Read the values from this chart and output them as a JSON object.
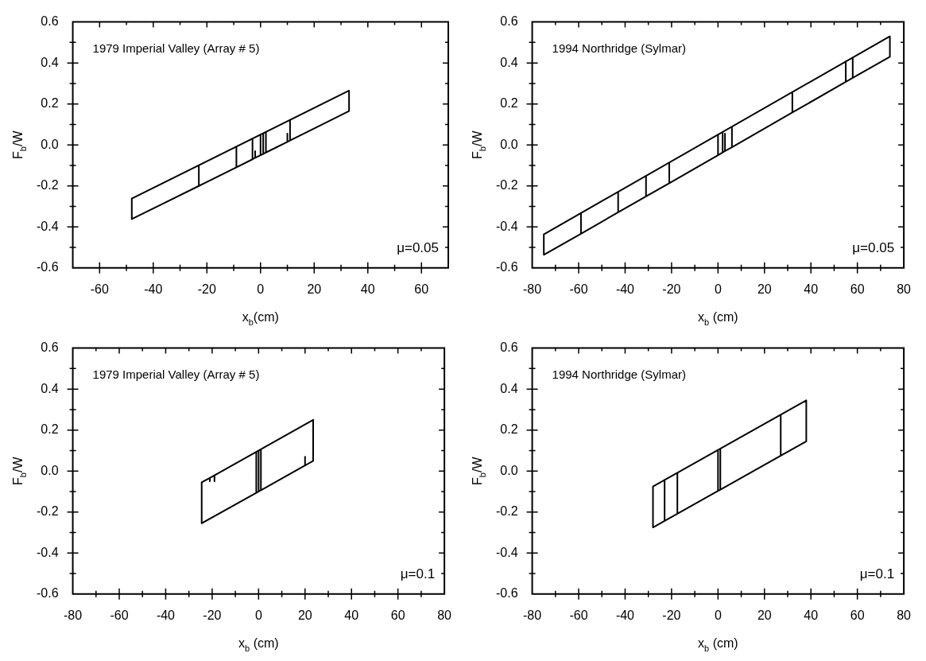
{
  "chart_data": [
    {
      "type": "line",
      "xlabel": "x$_{b}$(cm)",
      "ylabel": "F$_{b}$/W",
      "annotations": [
        "1979 Imperial Valley (Array # 5)",
        "μ=0.05"
      ],
      "marker": "none",
      "xlim": [
        -70,
        70
      ],
      "xticks": [
        -60,
        {
          "value": -50,
          "label": null
        },
        -40,
        {
          "value": -30,
          "label": null
        },
        -20,
        {
          "value": -10,
          "label": null
        },
        0,
        {
          "value": 10,
          "label": null
        },
        20,
        {
          "value": 30,
          "label": null
        },
        40,
        {
          "value": 50,
          "label": null
        },
        60
      ],
      "ylim": [
        -0.6,
        0.6
      ],
      "yticks": [
        -0.6,
        {
          "value": -0.5,
          "label": null
        },
        -0.4,
        {
          "value": -0.3,
          "label": null
        },
        -0.2,
        {
          "value": -0.1,
          "label": null
        },
        {
          "value": 0,
          "label": "0.0"
        },
        {
          "value": 0.1,
          "label": null
        },
        0.2,
        {
          "value": 0.3,
          "label": null
        },
        0.4,
        {
          "value": 0.5,
          "label": null
        },
        0.6
      ],
      "series": [
        {
          "color": "#000000",
          "x": [
            0,
            1,
            1,
            1,
            2,
            2,
            2,
            10,
            10,
            10,
            11,
            11,
            11,
            33,
            33,
            -48,
            -48,
            -23,
            -23,
            -23,
            -9,
            -9,
            -9,
            -3,
            -3,
            -3,
            -2,
            -2,
            -2,
            0,
            0
          ],
          "values": [
            -0.05,
            -0.044,
            0.056,
            -0.044,
            -0.037,
            0.063,
            -0.037,
            0.015,
            0.055,
            0.015,
            0.022,
            0.122,
            0.022,
            0.165,
            0.265,
            -0.262,
            -0.362,
            -0.2,
            -0.1,
            -0.2,
            -0.109,
            -0.009,
            -0.109,
            -0.07,
            0.03,
            -0.07,
            -0.063,
            -0.03,
            -0.063,
            -0.05,
            0.05
          ]
        }
      ]
    },
    {
      "type": "line",
      "xlabel": "x$_{b}$ (cm)",
      "ylabel": "F$_{b}$/W",
      "annotations": [
        "1994 Northridge (Sylmar)",
        "μ=0.05"
      ],
      "marker": "none",
      "xlim": [
        -80,
        80
      ],
      "xticks": [
        -80,
        {
          "value": -70,
          "label": null
        },
        -60,
        {
          "value": -50,
          "label": null
        },
        -40,
        {
          "value": -30,
          "label": null
        },
        -20,
        {
          "value": -10,
          "label": null
        },
        0,
        {
          "value": 10,
          "label": null
        },
        20,
        {
          "value": 30,
          "label": null
        },
        40,
        {
          "value": 50,
          "label": null
        },
        60,
        {
          "value": 70,
          "label": null
        },
        80
      ],
      "ylim": [
        -0.6,
        0.6
      ],
      "yticks": [
        -0.6,
        {
          "value": -0.5,
          "label": null
        },
        -0.4,
        {
          "value": -0.3,
          "label": null
        },
        -0.2,
        {
          "value": -0.1,
          "label": null
        },
        {
          "value": 0,
          "label": "0.0"
        },
        {
          "value": 0.1,
          "label": null
        },
        0.2,
        {
          "value": 0.3,
          "label": null
        },
        0.4,
        {
          "value": 0.5,
          "label": null
        },
        0.6
      ],
      "series": [
        {
          "color": "#000000",
          "x": [
            0,
            2,
            2,
            2,
            3,
            3,
            3,
            6,
            6,
            6,
            32,
            32,
            32,
            55,
            55,
            55,
            58,
            58,
            58,
            74,
            74,
            -75,
            -75,
            -59,
            -59,
            -59,
            -43,
            -43,
            -43,
            -31,
            -31,
            -31,
            -21,
            -21,
            -21,
            0,
            0
          ],
          "values": [
            -0.05,
            -0.037,
            0.063,
            -0.037,
            -0.03,
            0.055,
            -0.03,
            -0.011,
            0.089,
            -0.011,
            0.158,
            0.258,
            0.158,
            0.308,
            0.408,
            0.308,
            0.327,
            0.427,
            0.327,
            0.43,
            0.53,
            -0.436,
            -0.536,
            -0.433,
            -0.333,
            -0.433,
            -0.329,
            -0.229,
            -0.329,
            -0.251,
            -0.151,
            -0.251,
            -0.187,
            -0.087,
            -0.187,
            -0.05,
            0.05
          ]
        }
      ]
    },
    {
      "type": "line",
      "xlabel": "x$_{b}$ (cm)",
      "ylabel": "F$_{b}$/W",
      "annotations": [
        "1979 Imperial Valley (Array # 5)",
        "μ=0.1"
      ],
      "marker": "none",
      "xlim": [
        -80,
        80
      ],
      "xticks": [
        -80,
        {
          "value": -70,
          "label": null
        },
        -60,
        {
          "value": -50,
          "label": null
        },
        -40,
        {
          "value": -30,
          "label": null
        },
        -20,
        {
          "value": -10,
          "label": null
        },
        0,
        {
          "value": 10,
          "label": null
        },
        20,
        {
          "value": 30,
          "label": null
        },
        40,
        {
          "value": 50,
          "label": null
        },
        60,
        {
          "value": 70,
          "label": null
        },
        80
      ],
      "ylim": [
        -0.6,
        0.6
      ],
      "yticks": [
        -0.6,
        {
          "value": -0.5,
          "label": null
        },
        -0.4,
        {
          "value": -0.3,
          "label": null
        },
        -0.2,
        {
          "value": -0.1,
          "label": null
        },
        {
          "value": 0,
          "label": "0.0"
        },
        {
          "value": 0.1,
          "label": null
        },
        0.2,
        {
          "value": 0.3,
          "label": null
        },
        0.4,
        {
          "value": 0.5,
          "label": null
        },
        0.6
      ],
      "series": [
        {
          "color": "#000000",
          "x": [
            0,
            1,
            1,
            1,
            20,
            20,
            20,
            23.5,
            23.5,
            -19,
            -19,
            -19,
            -21,
            -21,
            -21,
            -24.5,
            -24.5,
            -1,
            -1,
            -1,
            0,
            0
          ],
          "values": [
            -0.1,
            -0.094,
            0.106,
            -0.094,
            0.027,
            0.07,
            0.027,
            0.05,
            0.25,
            -0.021,
            -0.05,
            -0.021,
            -0.034,
            -0.05,
            -0.034,
            -0.055,
            -0.255,
            -0.106,
            0.094,
            -0.106,
            -0.1,
            0.1
          ]
        }
      ]
    },
    {
      "type": "line",
      "xlabel": "x$_{b}$ (cm)",
      "ylabel": "F$_{b}$/W",
      "annotations": [
        "1994 Northridge (Sylmar)",
        "μ=0.1"
      ],
      "marker": "none",
      "xlim": [
        -80,
        80
      ],
      "xticks": [
        -80,
        {
          "value": -70,
          "label": null
        },
        -60,
        {
          "value": -50,
          "label": null
        },
        -40,
        {
          "value": -30,
          "label": null
        },
        -20,
        {
          "value": -10,
          "label": null
        },
        0,
        {
          "value": 10,
          "label": null
        },
        20,
        {
          "value": 30,
          "label": null
        },
        40,
        {
          "value": 50,
          "label": null
        },
        60,
        {
          "value": 70,
          "label": null
        },
        80
      ],
      "ylim": [
        -0.6,
        0.6
      ],
      "yticks": [
        -0.6,
        {
          "value": -0.5,
          "label": null
        },
        -0.4,
        {
          "value": -0.3,
          "label": null
        },
        -0.2,
        {
          "value": -0.1,
          "label": null
        },
        {
          "value": 0,
          "label": "0.0"
        },
        {
          "value": 0.1,
          "label": null
        },
        0.2,
        {
          "value": 0.3,
          "label": null
        },
        0.4,
        {
          "value": 0.5,
          "label": null
        },
        0.6
      ],
      "series": [
        {
          "color": "#000000",
          "x": [
            0,
            1,
            1,
            1,
            27,
            27,
            27,
            38,
            38,
            -28,
            -28,
            -23,
            -23,
            -23,
            -17.5,
            -17.5,
            -17.5,
            0,
            0
          ],
          "values": [
            -0.097,
            -0.091,
            0.109,
            -0.091,
            0.075,
            0.275,
            0.075,
            0.145,
            0.345,
            -0.075,
            -0.275,
            -0.243,
            -0.043,
            -0.243,
            -0.208,
            -0.008,
            -0.208,
            -0.097,
            0.103
          ]
        }
      ]
    }
  ]
}
